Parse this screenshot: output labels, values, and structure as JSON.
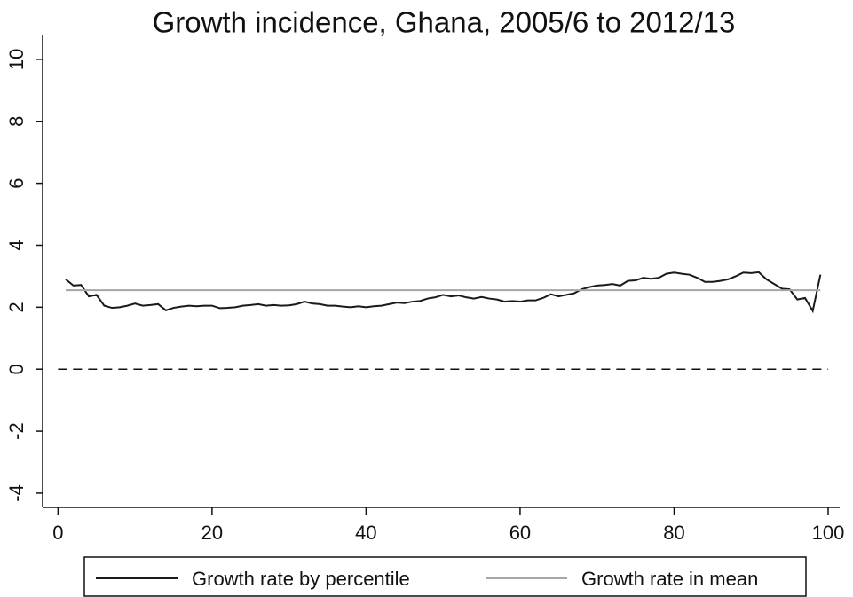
{
  "chart_data": {
    "type": "line",
    "title": "Growth incidence, Ghana, 2005/6 to 2012/13",
    "x": [
      1,
      2,
      3,
      4,
      5,
      6,
      7,
      8,
      9,
      10,
      11,
      12,
      13,
      14,
      15,
      16,
      17,
      18,
      19,
      20,
      21,
      22,
      23,
      24,
      25,
      26,
      27,
      28,
      29,
      30,
      31,
      32,
      33,
      34,
      35,
      36,
      37,
      38,
      39,
      40,
      41,
      42,
      43,
      44,
      45,
      46,
      47,
      48,
      49,
      50,
      51,
      52,
      53,
      54,
      55,
      56,
      57,
      58,
      59,
      60,
      61,
      62,
      63,
      64,
      65,
      66,
      67,
      68,
      69,
      70,
      71,
      72,
      73,
      74,
      75,
      76,
      77,
      78,
      79,
      80,
      81,
      82,
      83,
      84,
      85,
      86,
      87,
      88,
      89,
      90,
      91,
      92,
      93,
      94,
      95,
      96,
      97,
      98,
      99
    ],
    "series": [
      {
        "name": "Growth rate by percentile",
        "color": "#1a1a1a",
        "values": [
          2.9,
          2.7,
          2.72,
          2.35,
          2.4,
          2.05,
          1.98,
          2.0,
          2.05,
          2.12,
          2.05,
          2.07,
          2.1,
          1.9,
          1.98,
          2.02,
          2.05,
          2.03,
          2.05,
          2.05,
          1.97,
          1.98,
          2.0,
          2.05,
          2.07,
          2.1,
          2.05,
          2.07,
          2.05,
          2.06,
          2.1,
          2.18,
          2.12,
          2.1,
          2.05,
          2.05,
          2.02,
          2.0,
          2.03,
          2.0,
          2.03,
          2.05,
          2.1,
          2.15,
          2.13,
          2.18,
          2.2,
          2.28,
          2.32,
          2.4,
          2.35,
          2.38,
          2.32,
          2.28,
          2.33,
          2.28,
          2.25,
          2.18,
          2.2,
          2.18,
          2.22,
          2.22,
          2.3,
          2.42,
          2.35,
          2.4,
          2.45,
          2.58,
          2.65,
          2.7,
          2.72,
          2.75,
          2.7,
          2.85,
          2.87,
          2.95,
          2.92,
          2.95,
          3.08,
          3.12,
          3.08,
          3.05,
          2.95,
          2.82,
          2.82,
          2.85,
          2.9,
          3.0,
          3.12,
          3.1,
          3.13,
          2.9,
          2.75,
          2.6,
          2.58,
          2.25,
          2.3,
          1.88,
          3.05
        ]
      },
      {
        "name": "Growth rate in mean",
        "color": "#a6a6a6",
        "values": [
          2.55,
          2.55,
          2.55,
          2.55,
          2.55,
          2.55,
          2.55,
          2.55,
          2.55,
          2.55,
          2.55,
          2.55,
          2.55,
          2.55,
          2.55,
          2.55,
          2.55,
          2.55,
          2.55,
          2.55,
          2.55,
          2.55,
          2.55,
          2.55,
          2.55,
          2.55,
          2.55,
          2.55,
          2.55,
          2.55,
          2.55,
          2.55,
          2.55,
          2.55,
          2.55,
          2.55,
          2.55,
          2.55,
          2.55,
          2.55,
          2.55,
          2.55,
          2.55,
          2.55,
          2.55,
          2.55,
          2.55,
          2.55,
          2.55,
          2.55,
          2.55,
          2.55,
          2.55,
          2.55,
          2.55,
          2.55,
          2.55,
          2.55,
          2.55,
          2.55,
          2.55,
          2.55,
          2.55,
          2.55,
          2.55,
          2.55,
          2.55,
          2.55,
          2.55,
          2.55,
          2.55,
          2.55,
          2.55,
          2.55,
          2.55,
          2.55,
          2.55,
          2.55,
          2.55,
          2.55,
          2.55,
          2.55,
          2.55,
          2.55,
          2.55,
          2.55,
          2.55,
          2.55,
          2.55,
          2.55,
          2.55,
          2.55,
          2.55,
          2.55,
          2.55,
          2.55,
          2.55,
          2.55,
          2.55
        ]
      }
    ],
    "xlim": [
      -2,
      101.5
    ],
    "xticks": [
      0,
      20,
      40,
      60,
      80,
      100
    ],
    "ylim": [
      -4.46,
      10.77
    ],
    "yticks": [
      -4,
      -2,
      0,
      2,
      4,
      6,
      8,
      10
    ],
    "hline": 0,
    "legend": "bottom"
  }
}
